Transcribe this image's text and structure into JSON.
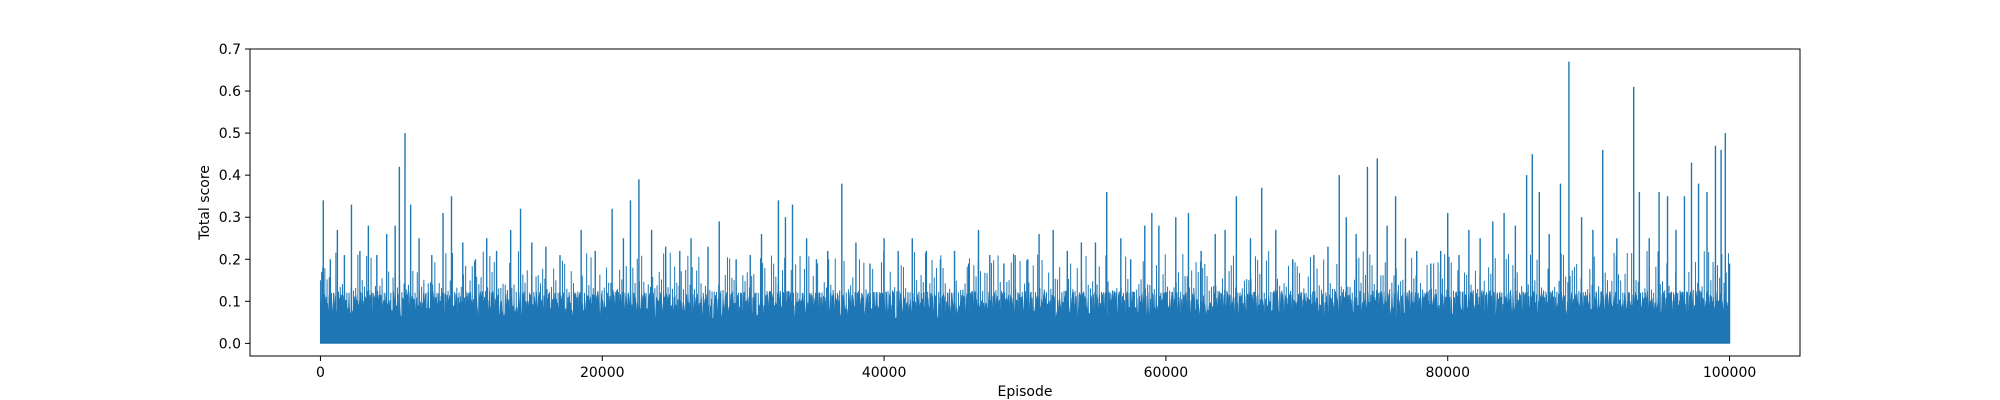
{
  "chart_data": {
    "type": "line",
    "title": "",
    "xlabel": "Episode",
    "ylabel": "Total score",
    "xlim": [
      -5000,
      105000
    ],
    "ylim": [
      -0.03,
      0.7
    ],
    "x_ticks": [
      0,
      20000,
      40000,
      60000,
      80000,
      100000
    ],
    "x_tick_labels": [
      "0",
      "20000",
      "40000",
      "60000",
      "80000",
      "100000"
    ],
    "y_ticks": [
      0.0,
      0.1,
      0.2,
      0.3,
      0.4,
      0.5,
      0.6,
      0.7
    ],
    "y_tick_labels": [
      "0.0",
      "0.1",
      "0.2",
      "0.3",
      "0.4",
      "0.5",
      "0.6",
      "0.7"
    ],
    "grid": false,
    "colors": {
      "series": "#1f77b4",
      "axes": "#000000",
      "background": "#ffffff"
    },
    "series": [
      {
        "x_range": [
          0,
          100000
        ],
        "baseline": 0.0,
        "dense_band_level": 0.1,
        "peaks": [
          [
            100,
            0.17
          ],
          [
            200,
            0.34
          ],
          [
            700,
            0.2
          ],
          [
            1200,
            0.27
          ],
          [
            1700,
            0.21
          ],
          [
            2200,
            0.33
          ],
          [
            2800,
            0.22
          ],
          [
            3400,
            0.28
          ],
          [
            4000,
            0.21
          ],
          [
            4700,
            0.26
          ],
          [
            5300,
            0.28
          ],
          [
            5600,
            0.42
          ],
          [
            6000,
            0.5
          ],
          [
            6400,
            0.33
          ],
          [
            7000,
            0.25
          ],
          [
            7900,
            0.21
          ],
          [
            8700,
            0.31
          ],
          [
            9300,
            0.35
          ],
          [
            10100,
            0.24
          ],
          [
            11000,
            0.2
          ],
          [
            11800,
            0.25
          ],
          [
            12500,
            0.22
          ],
          [
            13500,
            0.27
          ],
          [
            14200,
            0.32
          ],
          [
            15000,
            0.24
          ],
          [
            16000,
            0.23
          ],
          [
            17000,
            0.21
          ],
          [
            18500,
            0.27
          ],
          [
            19500,
            0.22
          ],
          [
            20700,
            0.32
          ],
          [
            21500,
            0.25
          ],
          [
            22000,
            0.34
          ],
          [
            22600,
            0.39
          ],
          [
            23500,
            0.27
          ],
          [
            24500,
            0.23
          ],
          [
            25500,
            0.22
          ],
          [
            26300,
            0.25
          ],
          [
            27500,
            0.23
          ],
          [
            28300,
            0.29
          ],
          [
            29500,
            0.2
          ],
          [
            30500,
            0.21
          ],
          [
            31300,
            0.26
          ],
          [
            32500,
            0.34
          ],
          [
            33000,
            0.3
          ],
          [
            33500,
            0.33
          ],
          [
            34500,
            0.25
          ],
          [
            35200,
            0.2
          ],
          [
            36000,
            0.22
          ],
          [
            37000,
            0.38
          ],
          [
            38000,
            0.24
          ],
          [
            39000,
            0.19
          ],
          [
            40000,
            0.25
          ],
          [
            41000,
            0.22
          ],
          [
            42000,
            0.25
          ],
          [
            43000,
            0.22
          ],
          [
            44000,
            0.2
          ],
          [
            45000,
            0.22
          ],
          [
            46000,
            0.19
          ],
          [
            46700,
            0.27
          ],
          [
            47500,
            0.21
          ],
          [
            48500,
            0.19
          ],
          [
            49300,
            0.21
          ],
          [
            50200,
            0.2
          ],
          [
            51000,
            0.26
          ],
          [
            52000,
            0.27
          ],
          [
            53000,
            0.22
          ],
          [
            54000,
            0.24
          ],
          [
            55000,
            0.24
          ],
          [
            55800,
            0.36
          ],
          [
            56800,
            0.25
          ],
          [
            57500,
            0.2
          ],
          [
            58500,
            0.28
          ],
          [
            59000,
            0.31
          ],
          [
            59500,
            0.28
          ],
          [
            60700,
            0.3
          ],
          [
            61600,
            0.31
          ],
          [
            62500,
            0.22
          ],
          [
            63500,
            0.26
          ],
          [
            64200,
            0.27
          ],
          [
            65000,
            0.35
          ],
          [
            66000,
            0.25
          ],
          [
            66800,
            0.37
          ],
          [
            67800,
            0.27
          ],
          [
            69000,
            0.2
          ],
          [
            70500,
            0.21
          ],
          [
            71500,
            0.23
          ],
          [
            72300,
            0.4
          ],
          [
            72800,
            0.3
          ],
          [
            73500,
            0.26
          ],
          [
            74300,
            0.42
          ],
          [
            75000,
            0.44
          ],
          [
            75700,
            0.28
          ],
          [
            76300,
            0.35
          ],
          [
            77000,
            0.25
          ],
          [
            77800,
            0.22
          ],
          [
            78800,
            0.19
          ],
          [
            79500,
            0.22
          ],
          [
            80000,
            0.31
          ],
          [
            80800,
            0.21
          ],
          [
            81500,
            0.27
          ],
          [
            82300,
            0.25
          ],
          [
            83200,
            0.29
          ],
          [
            84000,
            0.31
          ],
          [
            84800,
            0.28
          ],
          [
            85600,
            0.4
          ],
          [
            86000,
            0.45
          ],
          [
            86500,
            0.36
          ],
          [
            87200,
            0.26
          ],
          [
            88000,
            0.38
          ],
          [
            88600,
            0.67
          ],
          [
            89500,
            0.3
          ],
          [
            90300,
            0.27
          ],
          [
            91000,
            0.46
          ],
          [
            92000,
            0.25
          ],
          [
            93200,
            0.61
          ],
          [
            93600,
            0.36
          ],
          [
            94300,
            0.25
          ],
          [
            95000,
            0.36
          ],
          [
            95600,
            0.35
          ],
          [
            96200,
            0.27
          ],
          [
            96800,
            0.35
          ],
          [
            97300,
            0.43
          ],
          [
            97800,
            0.38
          ],
          [
            98400,
            0.36
          ],
          [
            99000,
            0.47
          ],
          [
            99400,
            0.46
          ],
          [
            99700,
            0.5
          ],
          [
            100000,
            0.19
          ]
        ]
      }
    ]
  }
}
